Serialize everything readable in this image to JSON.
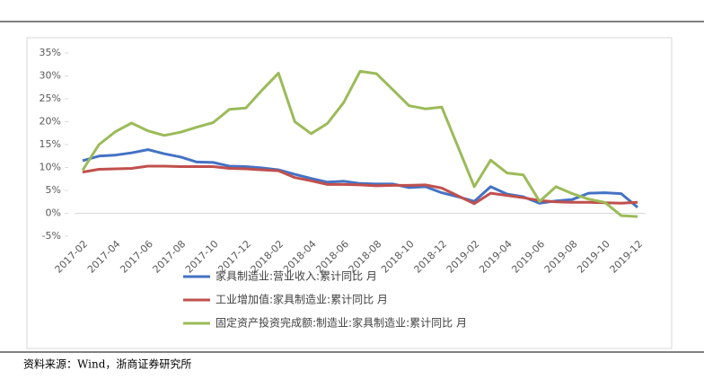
{
  "chart_data": {
    "type": "line",
    "categories": [
      "2017-02",
      null,
      "2017-04",
      null,
      "2017-06",
      null,
      "2017-08",
      null,
      "2017-10",
      null,
      "2017-12",
      null,
      "2018-02",
      null,
      "2018-04",
      null,
      "2018-06",
      null,
      "2018-08",
      null,
      "2018-10",
      null,
      "2018-12",
      null,
      "2019-02",
      null,
      "2019-04",
      null,
      "2019-06",
      null,
      "2019-08",
      null,
      "2019-10",
      null,
      "2019-12"
    ],
    "series": [
      {
        "name": "家具制造业:营业收入:累计同比 月",
        "color": "#4472c4",
        "values": [
          11.5,
          12.5,
          12.7,
          13.2,
          13.9,
          13.0,
          12.3,
          11.2,
          11.1,
          10.3,
          10.2,
          9.9,
          9.5,
          8.5,
          7.6,
          6.8,
          7.0,
          6.5,
          6.4,
          6.4,
          5.6,
          5.8,
          4.5,
          3.6,
          2.6,
          5.8,
          4.2,
          3.6,
          2.2,
          2.7,
          3.0,
          4.4,
          4.5,
          4.3,
          1.3
        ]
      },
      {
        "name": "工业增加值:家具制造业:累计同比 月",
        "color": "#c0504d",
        "values": [
          9.0,
          9.6,
          9.7,
          9.8,
          10.3,
          10.3,
          10.2,
          10.2,
          10.2,
          9.8,
          9.7,
          9.5,
          9.3,
          7.8,
          7.1,
          6.3,
          6.3,
          6.2,
          6.0,
          6.1,
          6.1,
          6.2,
          5.5,
          3.8,
          2.1,
          4.4,
          3.9,
          3.4,
          2.8,
          2.5,
          2.4,
          2.4,
          2.3,
          2.2,
          2.4
        ]
      },
      {
        "name": "固定资产投资完成额:制造业:家具制造业:累计同比 月",
        "color": "#9bbb59",
        "values": [
          9.4,
          15.0,
          17.8,
          19.7,
          18.0,
          17.0,
          17.7,
          18.8,
          19.8,
          22.7,
          23.0,
          26.9,
          30.6,
          20.0,
          17.4,
          19.6,
          24.2,
          31.0,
          30.5,
          27.0,
          23.5,
          22.8,
          23.2,
          14.5,
          5.8,
          11.6,
          8.8,
          8.4,
          2.6,
          5.8,
          4.3,
          3.1,
          2.4,
          -0.5,
          -0.7
        ]
      }
    ],
    "ylim": [
      -5,
      35
    ],
    "yticks": [
      {
        "value": -5,
        "label": "-5%"
      },
      {
        "value": 0,
        "label": "0%"
      },
      {
        "value": 5,
        "label": "5%"
      },
      {
        "value": 10,
        "label": "10%"
      },
      {
        "value": 15,
        "label": "15%"
      },
      {
        "value": 20,
        "label": "20%"
      },
      {
        "value": 25,
        "label": "25%"
      },
      {
        "value": 30,
        "label": "30%"
      },
      {
        "value": 35,
        "label": "35%"
      }
    ],
    "grid": false,
    "source": "资料来源：Wind，浙商证券研究所"
  }
}
